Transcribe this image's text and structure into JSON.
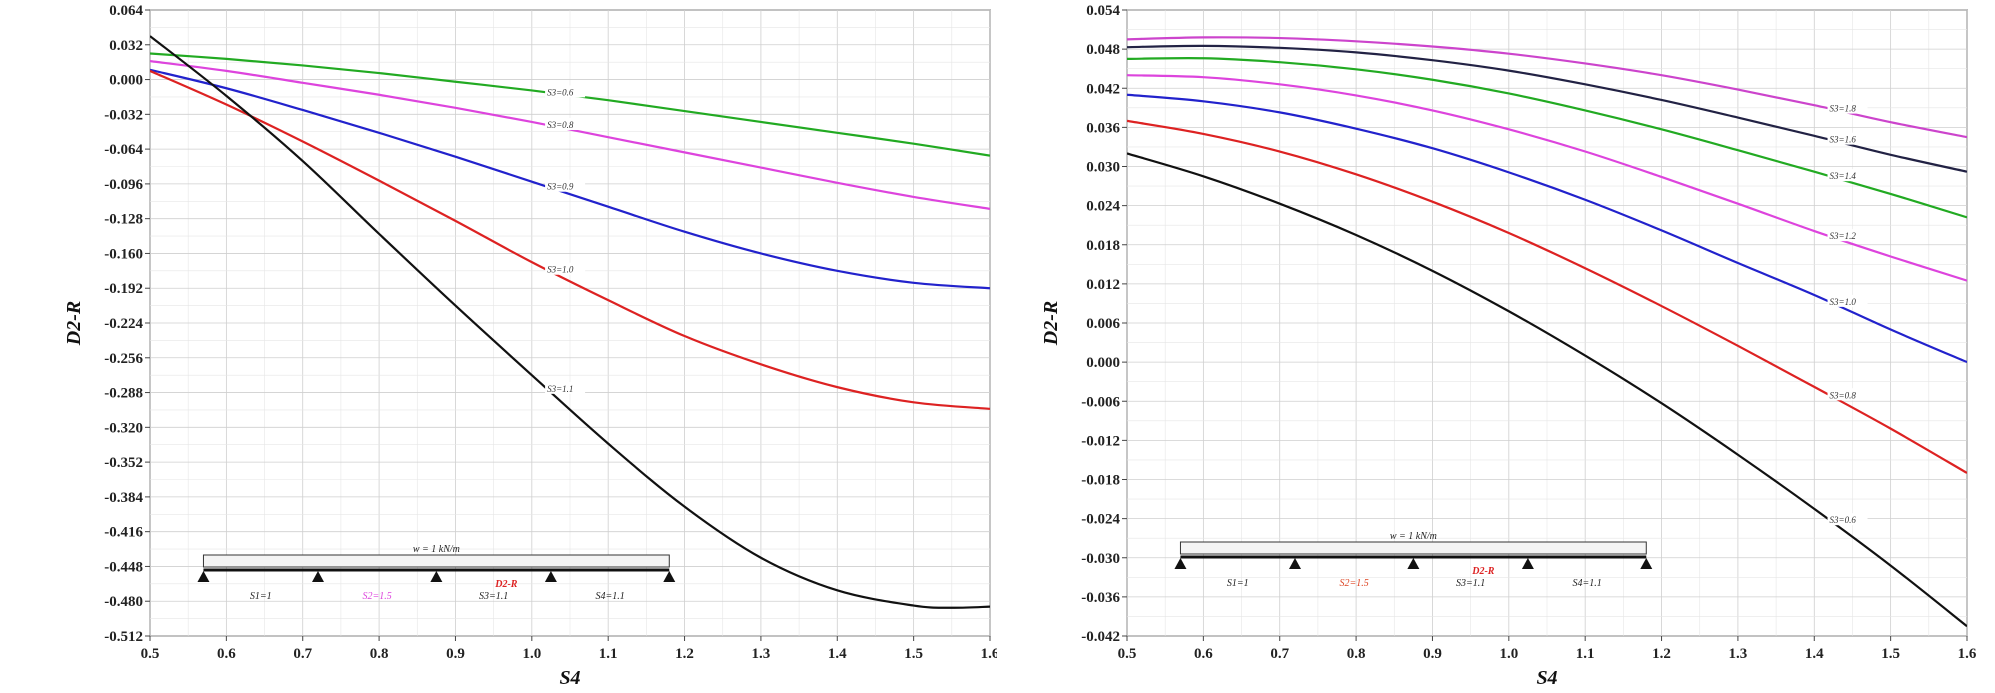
{
  "chart_data": [
    {
      "type": "line",
      "xlabel": "S4",
      "ylabel": "D2-R",
      "xlim": [
        0.5,
        1.6
      ],
      "ylim": [
        -0.512,
        0.064
      ],
      "x_ticks": [
        "0.5",
        "0.6",
        "0.7",
        "0.8",
        "0.9",
        "1.0",
        "1.1",
        "1.2",
        "1.3",
        "1.4",
        "1.5",
        "1.6"
      ],
      "y_ticks": [
        "0.064",
        "0.032",
        "0.000",
        "-0.032",
        "-0.064",
        "-0.096",
        "-0.128",
        "-0.160",
        "-0.192",
        "-0.224",
        "-0.256",
        "-0.288",
        "-0.320",
        "-0.352",
        "-0.384",
        "-0.416",
        "-0.448",
        "-0.480",
        "-0.512"
      ],
      "grid": true,
      "series": [
        {
          "name": "S3=0.6",
          "color": "#22aa22",
          "label_x": 1.02,
          "x": [
            0.5,
            0.6,
            0.7,
            0.8,
            0.9,
            1.0,
            1.1,
            1.2,
            1.3,
            1.4,
            1.5,
            1.6
          ],
          "values": [
            0.024,
            0.019,
            0.013,
            0.006,
            -0.002,
            -0.01,
            -0.019,
            -0.029,
            -0.039,
            -0.049,
            -0.059,
            -0.07
          ]
        },
        {
          "name": "S3=0.8",
          "color": "#dd44dd",
          "label_x": 1.02,
          "x": [
            0.5,
            0.6,
            0.7,
            0.8,
            0.9,
            1.0,
            1.1,
            1.2,
            1.3,
            1.4,
            1.5,
            1.6
          ],
          "values": [
            0.017,
            0.008,
            -0.003,
            -0.014,
            -0.026,
            -0.039,
            -0.053,
            -0.067,
            -0.081,
            -0.095,
            -0.108,
            -0.119
          ]
        },
        {
          "name": "S3=0.9",
          "color": "#2222cc",
          "label_x": 1.02,
          "x": [
            0.5,
            0.6,
            0.7,
            0.8,
            0.9,
            1.0,
            1.1,
            1.2,
            1.3,
            1.4,
            1.5,
            1.6
          ],
          "values": [
            0.009,
            -0.008,
            -0.028,
            -0.049,
            -0.071,
            -0.094,
            -0.117,
            -0.14,
            -0.16,
            -0.176,
            -0.187,
            -0.192
          ]
        },
        {
          "name": "S3=1.0",
          "color": "#dd2222",
          "label_x": 1.02,
          "x": [
            0.5,
            0.6,
            0.7,
            0.8,
            0.9,
            1.0,
            1.1,
            1.2,
            1.3,
            1.4,
            1.5,
            1.6
          ],
          "values": [
            0.008,
            -0.023,
            -0.057,
            -0.093,
            -0.13,
            -0.168,
            -0.203,
            -0.236,
            -0.262,
            -0.283,
            -0.297,
            -0.303
          ]
        },
        {
          "name": "S3=1.1",
          "color": "#111111",
          "label_x": 1.02,
          "x": [
            0.5,
            0.6,
            0.7,
            0.8,
            0.9,
            1.0,
            1.1,
            1.2,
            1.3,
            1.4,
            1.5,
            1.55,
            1.6
          ],
          "values": [
            0.04,
            -0.015,
            -0.075,
            -0.142,
            -0.208,
            -0.272,
            -0.335,
            -0.393,
            -0.44,
            -0.47,
            -0.484,
            -0.486,
            -0.485
          ]
        }
      ],
      "inset": {
        "load": "w = 1 kN/m",
        "spans": [
          "S1=1",
          "S2=1.5",
          "S3=1.1",
          "S4=1.1"
        ],
        "span_colors": [
          "#222222",
          "#dd44dd",
          "#222222",
          "#222222"
        ],
        "center_label": "D2-R",
        "center_label_color": "#dd2222"
      }
    },
    {
      "type": "line",
      "xlabel": "S4",
      "ylabel": "D2-R",
      "xlim": [
        0.5,
        1.6
      ],
      "ylim": [
        -0.042,
        0.054
      ],
      "x_ticks": [
        "0.5",
        "0.6",
        "0.7",
        "0.8",
        "0.9",
        "1.0",
        "1.1",
        "1.2",
        "1.3",
        "1.4",
        "1.5",
        "1.6"
      ],
      "y_ticks": [
        "0.054",
        "0.048",
        "0.042",
        "0.036",
        "0.030",
        "0.024",
        "0.018",
        "0.012",
        "0.006",
        "0.000",
        "-0.006",
        "-0.012",
        "-0.018",
        "-0.024",
        "-0.030",
        "-0.036",
        "-0.042"
      ],
      "grid": true,
      "series": [
        {
          "name": "S3=1.8",
          "color": "#cc44cc",
          "label_x": 1.42,
          "x": [
            0.5,
            0.6,
            0.7,
            0.8,
            0.9,
            1.0,
            1.1,
            1.2,
            1.3,
            1.4,
            1.5,
            1.6
          ],
          "values": [
            0.0495,
            0.0498,
            0.0497,
            0.0492,
            0.0484,
            0.0473,
            0.0458,
            0.044,
            0.0418,
            0.0394,
            0.0368,
            0.0345
          ]
        },
        {
          "name": "S3=1.6",
          "color": "#222244",
          "label_x": 1.42,
          "x": [
            0.5,
            0.6,
            0.7,
            0.8,
            0.9,
            1.0,
            1.1,
            1.2,
            1.3,
            1.4,
            1.5,
            1.6
          ],
          "values": [
            0.0483,
            0.0485,
            0.0482,
            0.0475,
            0.0463,
            0.0447,
            0.0426,
            0.0402,
            0.0375,
            0.0347,
            0.0318,
            0.0292
          ]
        },
        {
          "name": "S3=1.4",
          "color": "#22aa22",
          "label_x": 1.42,
          "x": [
            0.5,
            0.6,
            0.7,
            0.8,
            0.9,
            1.0,
            1.1,
            1.2,
            1.3,
            1.4,
            1.5,
            1.6
          ],
          "values": [
            0.0465,
            0.0466,
            0.046,
            0.0449,
            0.0433,
            0.0412,
            0.0386,
            0.0357,
            0.0325,
            0.0292,
            0.0258,
            0.0222
          ]
        },
        {
          "name": "S3=1.2",
          "color": "#dd44dd",
          "label_x": 1.42,
          "x": [
            0.5,
            0.6,
            0.7,
            0.8,
            0.9,
            1.0,
            1.1,
            1.2,
            1.3,
            1.4,
            1.5,
            1.6
          ],
          "values": [
            0.044,
            0.0437,
            0.0426,
            0.0409,
            0.0386,
            0.0357,
            0.0323,
            0.0284,
            0.0243,
            0.0201,
            0.0162,
            0.0125
          ]
        },
        {
          "name": "S3=1.0",
          "color": "#2222cc",
          "label_x": 1.42,
          "x": [
            0.5,
            0.6,
            0.7,
            0.8,
            0.9,
            1.0,
            1.1,
            1.2,
            1.3,
            1.4,
            1.5,
            1.6
          ],
          "values": [
            0.041,
            0.04,
            0.0383,
            0.0358,
            0.0328,
            0.0291,
            0.0249,
            0.0202,
            0.0152,
            0.0103,
            0.005,
            0.0
          ]
        },
        {
          "name": "S3=0.8",
          "color": "#dd2222",
          "label_x": 1.42,
          "x": [
            0.5,
            0.6,
            0.7,
            0.8,
            0.9,
            1.0,
            1.1,
            1.2,
            1.3,
            1.4,
            1.5,
            1.6
          ],
          "values": [
            0.037,
            0.035,
            0.0323,
            0.0288,
            0.0246,
            0.0198,
            0.0144,
            0.0086,
            0.0025,
            -0.0038,
            -0.0102,
            -0.017
          ]
        },
        {
          "name": "S3=0.6",
          "color": "#111111",
          "label_x": 1.42,
          "x": [
            0.5,
            0.6,
            0.7,
            0.8,
            0.9,
            1.0,
            1.1,
            1.2,
            1.3,
            1.4,
            1.5,
            1.6
          ],
          "values": [
            0.032,
            0.0285,
            0.0243,
            0.0195,
            0.014,
            0.0078,
            0.001,
            -0.0063,
            -0.0142,
            -0.0225,
            -0.0312,
            -0.0405
          ]
        }
      ],
      "inset": {
        "load": "w = 1 kN/m",
        "spans": [
          "S1=1",
          "S2=1.5",
          "S3=1.1",
          "S4=1.1"
        ],
        "span_colors": [
          "#222222",
          "#dd4422",
          "#222222",
          "#222222"
        ],
        "center_label": "D2-R",
        "center_label_color": "#dd2222"
      }
    }
  ]
}
